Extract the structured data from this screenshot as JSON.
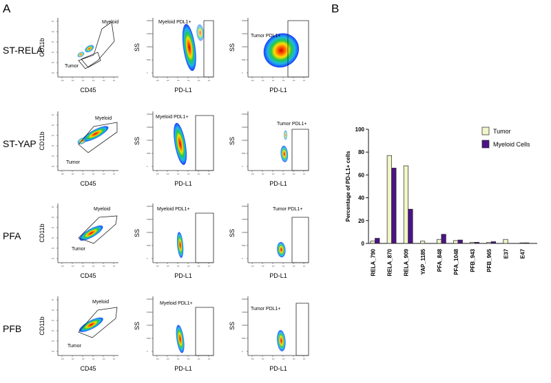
{
  "panel_labels": {
    "a": "A",
    "b": "B"
  },
  "flow": {
    "axis_labels": {
      "cd45": "CD45",
      "cd11b": "CD11b",
      "ss": "SS",
      "pdl1": "PD-L1"
    },
    "tick_labels": {
      "x": [
        "10²",
        "10³",
        "10⁴",
        "10⁵",
        "10⁶",
        "10⁷"
      ],
      "y_log": [
        "10²",
        "10³",
        "10⁴",
        "10⁵",
        "10⁶",
        "10⁷"
      ],
      "y_lin": [
        "0",
        "500k",
        "1000k",
        "1500k",
        "2000k"
      ]
    },
    "gate_labels": {
      "myeloid": "Myeloid",
      "tumor": "Tumor",
      "myeloid_pdl1": "Myeloid PDL1+",
      "tumor_pdl1": "Tumor PDL1+"
    },
    "rows": [
      {
        "label": "ST-RELA"
      },
      {
        "label": "ST-YAP"
      },
      {
        "label": "PFA"
      },
      {
        "label": "PFB"
      }
    ]
  },
  "legend": {
    "tumor": "Tumor",
    "myeloid": "Myeloid Cells"
  },
  "colors": {
    "tumor": "#f2f5c8",
    "myeloid": "#4b1486",
    "gate": "#222222"
  },
  "chart_data": {
    "type": "bar",
    "title": "",
    "xlabel": "",
    "ylabel": "Percentage of PD-L1+ cells",
    "ylim": [
      0,
      100
    ],
    "yticks": [
      0,
      20,
      40,
      60,
      80,
      100
    ],
    "categories": [
      "RELA_790",
      "RELA_870",
      "RELA_909",
      "YAP_1185",
      "PFA_848",
      "PFA_1048",
      "PFB_943",
      "PFB_965",
      "E37",
      "E47"
    ],
    "series": [
      {
        "name": "Tumor",
        "values": [
          2,
          77,
          68,
          2,
          3.5,
          2.5,
          1,
          1,
          3.5,
          0.5
        ]
      },
      {
        "name": "Myeloid Cells",
        "values": [
          4.5,
          66,
          30,
          0,
          8,
          3,
          1,
          1.5,
          0,
          0.5
        ]
      }
    ],
    "legend_position": "top-right",
    "grid": false
  }
}
